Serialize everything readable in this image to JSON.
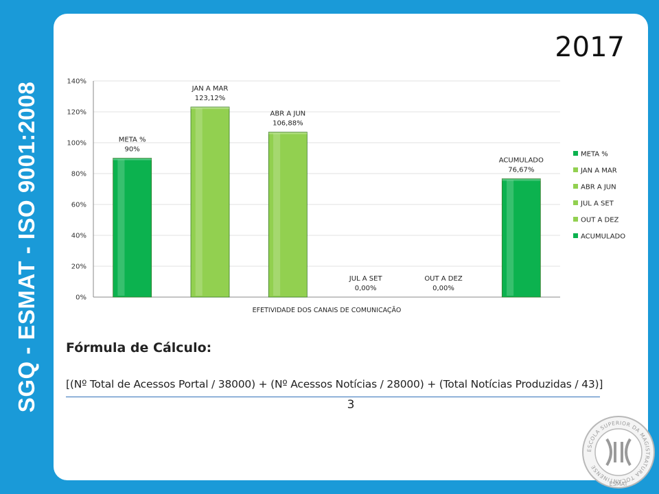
{
  "sidebar": {
    "title": "SGQ - ESMAT - ISO 9001:2008"
  },
  "header": {
    "year": "2017"
  },
  "chart_data": {
    "type": "bar",
    "xlabel": "EFETIVIDADE  DOS CANAIS DE COMUNICAÇÃO",
    "ylim": [
      0,
      140
    ],
    "yticks": [
      "0%",
      "20%",
      "40%",
      "60%",
      "80%",
      "100%",
      "120%",
      "140%"
    ],
    "yvalues": [
      0,
      20,
      40,
      60,
      80,
      100,
      120,
      140
    ],
    "legend_position": "right",
    "series": [
      {
        "name": "META %",
        "value": 90,
        "label": "90%",
        "color": "#0cb24f"
      },
      {
        "name": "JAN A MAR",
        "value": 123.12,
        "label": "123,12%",
        "color": "#92d050"
      },
      {
        "name": "ABR A JUN",
        "value": 106.88,
        "label": "106,88%",
        "color": "#92d050"
      },
      {
        "name": "JUL A SET",
        "value": 0,
        "label": "0,00%",
        "color": "#92d050"
      },
      {
        "name": "OUT A DEZ",
        "value": 0,
        "label": "0,00%",
        "color": "#92d050"
      },
      {
        "name": "ACUMULADO",
        "value": 76.67,
        "label": "76,67%",
        "color": "#0cb24f"
      }
    ]
  },
  "formula": {
    "title": "Fórmula de Cálculo:",
    "numerator": "[(Nº Total de Acessos Portal / 38000) + (Nº Acessos Notícias / 28000) + (Total Notícias Produzidas / 43)]",
    "denominator": "3"
  },
  "seal": {
    "text": "ESCOLA SUPERIOR DA MAGISTRATURA TOCANTINENSE",
    "label": "ESMAT"
  }
}
